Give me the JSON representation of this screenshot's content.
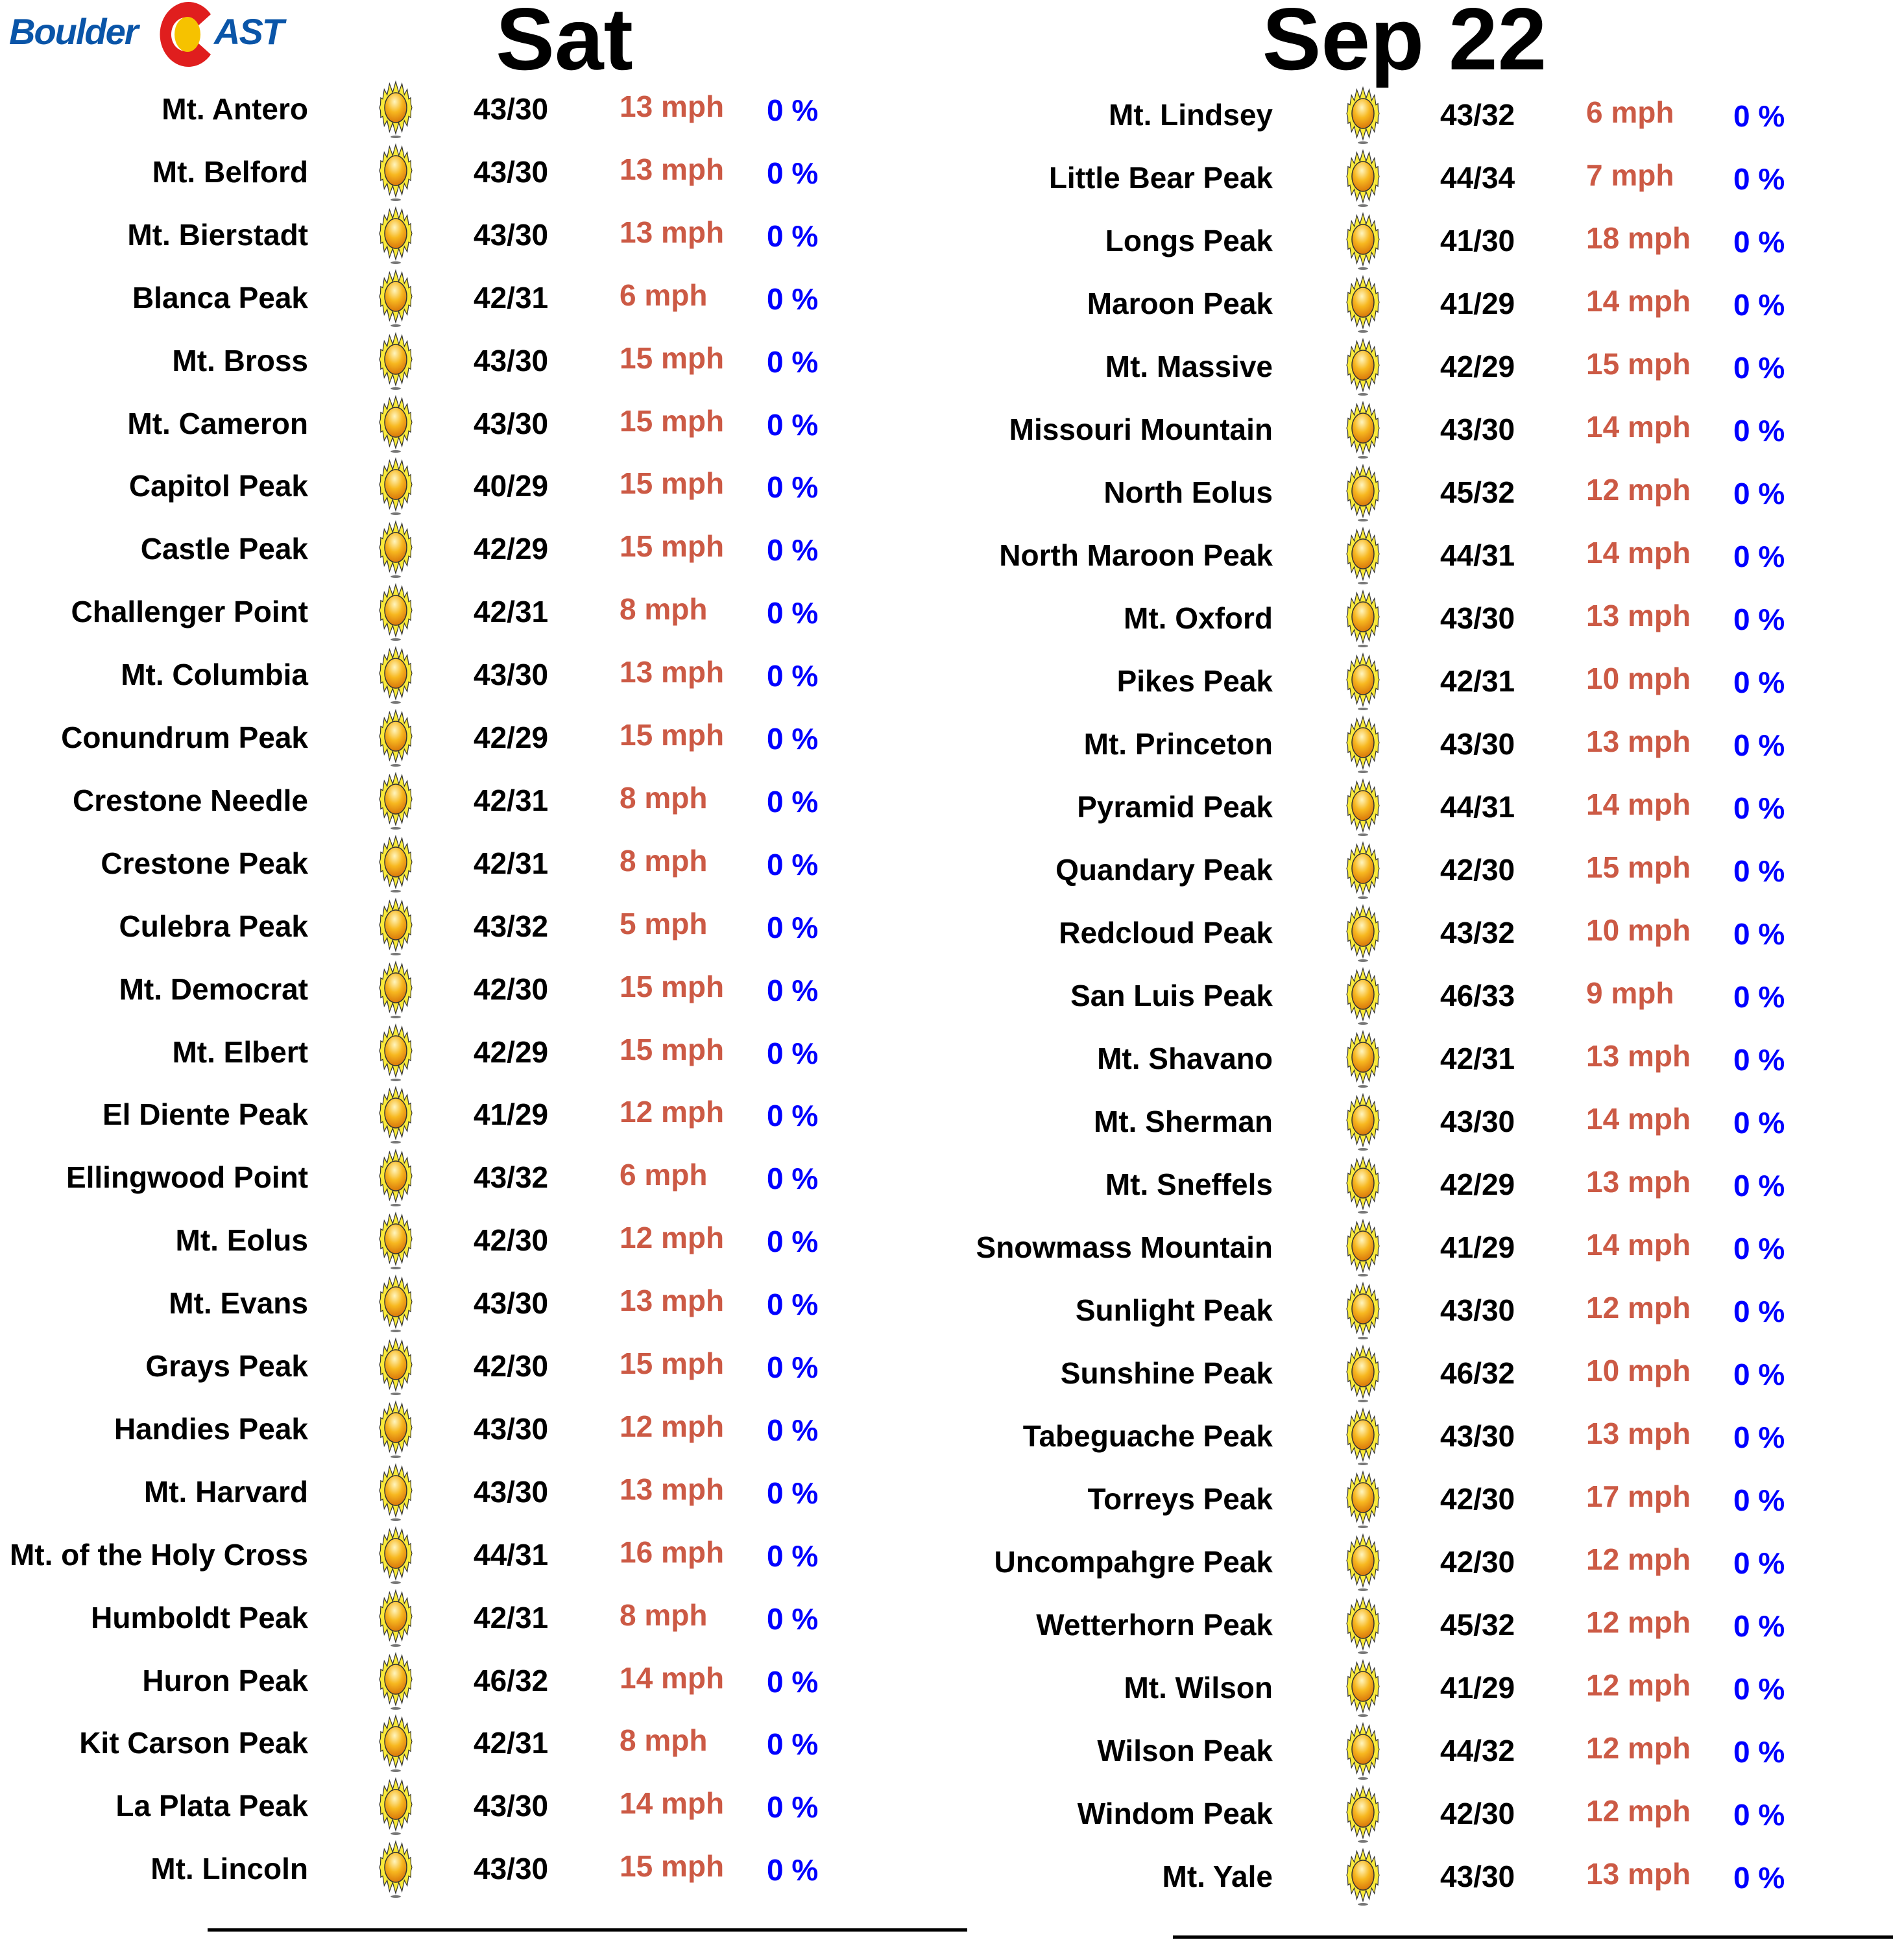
{
  "logo": {
    "text_left": "Boulder",
    "text_right": "AST",
    "colors": {
      "blue": "#0a55a8",
      "red": "#e01e1e",
      "yellow": "#f6c200"
    }
  },
  "header": {
    "day": "Sat",
    "date": "Sep 22"
  },
  "colors": {
    "wind": "#cc5a45",
    "precip": "#0000ff",
    "text": "#000000"
  },
  "condition_icon": "sunny-icon",
  "left_peaks": [
    {
      "name": "Mt. Antero",
      "temp": "43/30",
      "wind": "13 mph",
      "precip": "0 %"
    },
    {
      "name": "Mt. Belford",
      "temp": "43/30",
      "wind": "13 mph",
      "precip": "0 %"
    },
    {
      "name": "Mt. Bierstadt",
      "temp": "43/30",
      "wind": "13 mph",
      "precip": "0 %"
    },
    {
      "name": "Blanca Peak",
      "temp": "42/31",
      "wind": "6 mph",
      "precip": "0 %"
    },
    {
      "name": "Mt. Bross",
      "temp": "43/30",
      "wind": "15 mph",
      "precip": "0 %"
    },
    {
      "name": "Mt. Cameron",
      "temp": "43/30",
      "wind": "15 mph",
      "precip": "0 %"
    },
    {
      "name": "Capitol Peak",
      "temp": "40/29",
      "wind": "15 mph",
      "precip": "0 %"
    },
    {
      "name": "Castle Peak",
      "temp": "42/29",
      "wind": "15 mph",
      "precip": "0 %"
    },
    {
      "name": "Challenger Point",
      "temp": "42/31",
      "wind": "8 mph",
      "precip": "0 %"
    },
    {
      "name": "Mt. Columbia",
      "temp": "43/30",
      "wind": "13 mph",
      "precip": "0 %"
    },
    {
      "name": "Conundrum Peak",
      "temp": "42/29",
      "wind": "15 mph",
      "precip": "0 %"
    },
    {
      "name": "Crestone Needle",
      "temp": "42/31",
      "wind": "8 mph",
      "precip": "0 %"
    },
    {
      "name": "Crestone Peak",
      "temp": "42/31",
      "wind": "8 mph",
      "precip": "0 %"
    },
    {
      "name": "Culebra Peak",
      "temp": "43/32",
      "wind": "5 mph",
      "precip": "0 %"
    },
    {
      "name": "Mt. Democrat",
      "temp": "42/30",
      "wind": "15 mph",
      "precip": "0 %"
    },
    {
      "name": "Mt. Elbert",
      "temp": "42/29",
      "wind": "15 mph",
      "precip": "0 %"
    },
    {
      "name": "El Diente Peak",
      "temp": "41/29",
      "wind": "12 mph",
      "precip": "0 %"
    },
    {
      "name": "Ellingwood Point",
      "temp": "43/32",
      "wind": "6 mph",
      "precip": "0 %"
    },
    {
      "name": "Mt. Eolus",
      "temp": "42/30",
      "wind": "12 mph",
      "precip": "0 %"
    },
    {
      "name": "Mt. Evans",
      "temp": "43/30",
      "wind": "13 mph",
      "precip": "0 %"
    },
    {
      "name": "Grays Peak",
      "temp": "42/30",
      "wind": "15 mph",
      "precip": "0 %"
    },
    {
      "name": "Handies Peak",
      "temp": "43/30",
      "wind": "12 mph",
      "precip": "0 %"
    },
    {
      "name": "Mt. Harvard",
      "temp": "43/30",
      "wind": "13 mph",
      "precip": "0 %"
    },
    {
      "name": "Mt. of the Holy Cross",
      "temp": "44/31",
      "wind": "16 mph",
      "precip": "0 %"
    },
    {
      "name": "Humboldt Peak",
      "temp": "42/31",
      "wind": "8 mph",
      "precip": "0 %"
    },
    {
      "name": "Huron Peak",
      "temp": "46/32",
      "wind": "14 mph",
      "precip": "0 %"
    },
    {
      "name": "Kit Carson Peak",
      "temp": "42/31",
      "wind": "8 mph",
      "precip": "0 %"
    },
    {
      "name": "La Plata Peak",
      "temp": "43/30",
      "wind": "14 mph",
      "precip": "0 %"
    },
    {
      "name": "Mt. Lincoln",
      "temp": "43/30",
      "wind": "15 mph",
      "precip": "0 %"
    }
  ],
  "right_peaks": [
    {
      "name": "Mt. Lindsey",
      "temp": "43/32",
      "wind": "6 mph",
      "precip": "0 %"
    },
    {
      "name": "Little Bear Peak",
      "temp": "44/34",
      "wind": "7 mph",
      "precip": "0 %"
    },
    {
      "name": "Longs Peak",
      "temp": "41/30",
      "wind": "18 mph",
      "precip": "0 %"
    },
    {
      "name": "Maroon Peak",
      "temp": "41/29",
      "wind": "14 mph",
      "precip": "0 %"
    },
    {
      "name": "Mt. Massive",
      "temp": "42/29",
      "wind": "15 mph",
      "precip": "0 %"
    },
    {
      "name": "Missouri Mountain",
      "temp": "43/30",
      "wind": "14 mph",
      "precip": "0 %"
    },
    {
      "name": "North Eolus",
      "temp": "45/32",
      "wind": "12 mph",
      "precip": "0 %"
    },
    {
      "name": "North Maroon Peak",
      "temp": "44/31",
      "wind": "14 mph",
      "precip": "0 %"
    },
    {
      "name": "Mt. Oxford",
      "temp": "43/30",
      "wind": "13 mph",
      "precip": "0 %"
    },
    {
      "name": "Pikes Peak",
      "temp": "42/31",
      "wind": "10 mph",
      "precip": "0 %"
    },
    {
      "name": "Mt. Princeton",
      "temp": "43/30",
      "wind": "13 mph",
      "precip": "0 %"
    },
    {
      "name": "Pyramid Peak",
      "temp": "44/31",
      "wind": "14 mph",
      "precip": "0 %"
    },
    {
      "name": "Quandary Peak",
      "temp": "42/30",
      "wind": "15 mph",
      "precip": "0 %"
    },
    {
      "name": "Redcloud Peak",
      "temp": "43/32",
      "wind": "10 mph",
      "precip": "0 %"
    },
    {
      "name": "San Luis Peak",
      "temp": "46/33",
      "wind": "9 mph",
      "precip": "0 %"
    },
    {
      "name": "Mt. Shavano",
      "temp": "42/31",
      "wind": "13 mph",
      "precip": "0 %"
    },
    {
      "name": "Mt. Sherman",
      "temp": "43/30",
      "wind": "14 mph",
      "precip": "0 %"
    },
    {
      "name": "Mt. Sneffels",
      "temp": "42/29",
      "wind": "13 mph",
      "precip": "0 %"
    },
    {
      "name": "Snowmass Mountain",
      "temp": "41/29",
      "wind": "14 mph",
      "precip": "0 %"
    },
    {
      "name": "Sunlight Peak",
      "temp": "43/30",
      "wind": "12 mph",
      "precip": "0 %"
    },
    {
      "name": "Sunshine Peak",
      "temp": "46/32",
      "wind": "10 mph",
      "precip": "0 %"
    },
    {
      "name": "Tabeguache Peak",
      "temp": "43/30",
      "wind": "13 mph",
      "precip": "0 %"
    },
    {
      "name": "Torreys Peak",
      "temp": "42/30",
      "wind": "17 mph",
      "precip": "0 %"
    },
    {
      "name": "Uncompahgre Peak",
      "temp": "42/30",
      "wind": "12 mph",
      "precip": "0 %"
    },
    {
      "name": "Wetterhorn Peak",
      "temp": "45/32",
      "wind": "12 mph",
      "precip": "0 %"
    },
    {
      "name": "Mt. Wilson",
      "temp": "41/29",
      "wind": "12 mph",
      "precip": "0 %"
    },
    {
      "name": "Wilson Peak",
      "temp": "44/32",
      "wind": "12 mph",
      "precip": "0 %"
    },
    {
      "name": "Windom Peak",
      "temp": "42/30",
      "wind": "12 mph",
      "precip": "0 %"
    },
    {
      "name": "Mt. Yale",
      "temp": "43/30",
      "wind": "13 mph",
      "precip": "0 %"
    }
  ]
}
